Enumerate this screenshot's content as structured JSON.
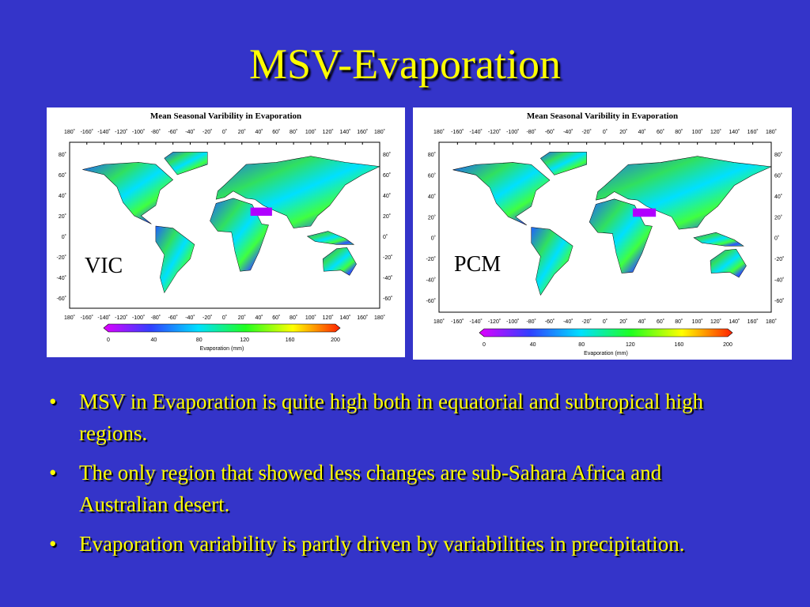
{
  "title": "MSV-Evaporation",
  "maps": [
    {
      "heading": "Mean Seasonal Varibility in Evaporation",
      "model": "VIC",
      "lon_labels": [
        "180˚",
        "-160˚",
        "-140˚",
        "-120˚",
        "-100˚",
        "-80˚",
        "-60˚",
        "-40˚",
        "-20˚",
        "0˚",
        "20˚",
        "40˚",
        "60˚",
        "80˚",
        "100˚",
        "120˚",
        "140˚",
        "160˚",
        "180˚"
      ],
      "lat_labels": [
        "80˚",
        "60˚",
        "40˚",
        "20˚",
        "0˚",
        "-20˚",
        "-40˚",
        "-60˚"
      ],
      "colorbar": {
        "ticks": [
          "0",
          "40",
          "80",
          "120",
          "160",
          "200"
        ],
        "label": "Evaporation (mm)"
      }
    },
    {
      "heading": "Mean Seasonal Varibility in Evaporation",
      "model": "PCM",
      "lon_labels": [
        "180˚",
        "-160˚",
        "-140˚",
        "-120˚",
        "-100˚",
        "-80˚",
        "-60˚",
        "-40˚",
        "-20˚",
        "0˚",
        "20˚",
        "40˚",
        "60˚",
        "80˚",
        "100˚",
        "120˚",
        "140˚",
        "160˚",
        "180˚"
      ],
      "lat_labels": [
        "80˚",
        "60˚",
        "40˚",
        "20˚",
        "0˚",
        "-20˚",
        "-40˚",
        "-60˚"
      ],
      "colorbar": {
        "ticks": [
          "0",
          "40",
          "80",
          "120",
          "160",
          "200"
        ],
        "label": "Evaporation (mm)"
      }
    }
  ],
  "bullets": [
    "MSV in Evaporation is quite high both in equatorial and subtropical high regions.",
    "The only region that showed less changes are sub-Sahara Africa and Australian desert.",
    "Evaporation variability is partly driven by variabilities in precipitation."
  ]
}
